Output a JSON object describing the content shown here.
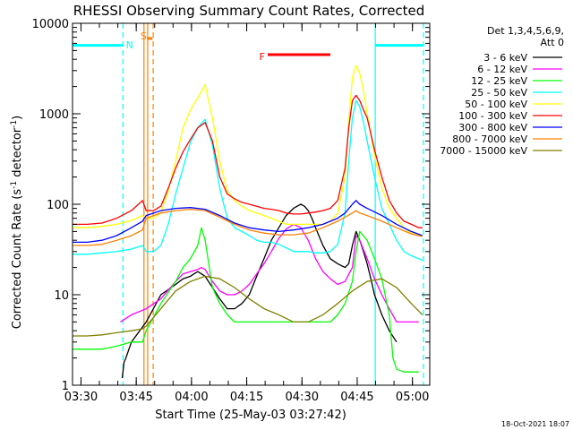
{
  "chart_data": {
    "type": "line",
    "title": "RHESSI Observing Summary Count Rates, Corrected",
    "xlabel": "Start Time (25-May-03 03:27:42)",
    "ylabel": "Corrected Count Rate (s",
    "ylabel_sup": "-1",
    "ylabel_mid": " detector",
    "ylabel_sup2": "-1",
    "ylabel_end": ")",
    "x_unit": "minutes since 03:27:42",
    "xlim": [
      0,
      97
    ],
    "ylim": [
      1,
      10000
    ],
    "yscale": "log",
    "x_ticks": [
      {
        "v": 2.3,
        "label": "03:30"
      },
      {
        "v": 17.3,
        "label": "03:45"
      },
      {
        "v": 32.3,
        "label": "04:00"
      },
      {
        "v": 47.3,
        "label": "04:15"
      },
      {
        "v": 62.3,
        "label": "04:30"
      },
      {
        "v": 77.3,
        "label": "04:45"
      },
      {
        "v": 92.3,
        "label": "05:00"
      }
    ],
    "y_ticks": [
      {
        "v": 1,
        "label": "1"
      },
      {
        "v": 10,
        "label": "10"
      },
      {
        "v": 100,
        "label": "100"
      },
      {
        "v": 1000,
        "label": "1000"
      },
      {
        "v": 10000,
        "label": "10000"
      }
    ],
    "legend_header": [
      "Det 1,3,4,5,6,9,",
      "Att 0"
    ],
    "legend_position": "right",
    "series": [
      {
        "name": "3 - 6 keV",
        "color": "#000000",
        "x": [
          13.5,
          14,
          14.5,
          16,
          20,
          24,
          28,
          30,
          32,
          33,
          34,
          35,
          36,
          38,
          40,
          42,
          44,
          46,
          48,
          50,
          52,
          54,
          56,
          58,
          60,
          61,
          62,
          63,
          64,
          65,
          66,
          68,
          70,
          72,
          74,
          75,
          76,
          77,
          78,
          79,
          80,
          81,
          82,
          84,
          86,
          88
        ],
        "y": [
          1.2,
          1.8,
          2.0,
          3,
          5,
          10,
          13,
          15,
          16,
          17,
          18,
          17,
          16,
          12,
          9,
          7,
          7,
          8,
          10,
          16,
          25,
          40,
          55,
          75,
          90,
          95,
          100,
          95,
          85,
          70,
          55,
          35,
          25,
          22,
          20,
          22,
          35,
          50,
          40,
          30,
          22,
          15,
          10,
          6,
          4,
          3
        ]
      },
      {
        "name": "6 - 12 keV",
        "color": "#ff00ff",
        "x": [
          13,
          16,
          20,
          24,
          28,
          30,
          32,
          34,
          35,
          36,
          38,
          40,
          42,
          44,
          46,
          48,
          50,
          52,
          54,
          56,
          58,
          60,
          62,
          64,
          66,
          68,
          70,
          72,
          74,
          76,
          77,
          78,
          80,
          82,
          84,
          86,
          88,
          90,
          92,
          94
        ],
        "y": [
          5,
          6,
          7,
          9,
          14,
          17,
          18,
          19,
          20,
          19,
          14,
          11,
          10,
          10,
          11,
          13,
          17,
          22,
          30,
          42,
          53,
          60,
          55,
          40,
          25,
          18,
          15,
          13,
          14,
          20,
          45,
          40,
          25,
          15,
          10,
          7,
          5,
          5,
          5,
          5
        ]
      },
      {
        "name": "12 - 25 keV",
        "color": "#00ff00",
        "x": [
          0,
          4,
          8,
          12,
          16,
          19,
          20,
          24,
          28,
          30,
          32,
          34,
          35,
          36,
          38,
          40,
          42,
          44,
          46,
          48,
          50,
          52,
          54,
          56,
          58,
          60,
          62,
          64,
          66,
          68,
          70,
          72,
          74,
          76,
          77,
          78,
          80,
          82,
          84,
          86,
          87,
          88,
          90,
          92,
          94
        ],
        "y": [
          2.5,
          2.5,
          2.5,
          2.7,
          3,
          3,
          4,
          8,
          14,
          20,
          25,
          35,
          55,
          40,
          12,
          8,
          6,
          5,
          5,
          5,
          5,
          5,
          5,
          5,
          5,
          5,
          5,
          5,
          5,
          5,
          5,
          6,
          8,
          14,
          30,
          50,
          40,
          25,
          15,
          6,
          2,
          1.5,
          1.4,
          1.4,
          1.4
        ]
      },
      {
        "name": "25 - 50 keV",
        "color": "#00ffff",
        "x": [
          0,
          4,
          8,
          12,
          16,
          19,
          20,
          22,
          24,
          26,
          28,
          30,
          32,
          34,
          36,
          38,
          40,
          42,
          44,
          46,
          48,
          50,
          52,
          54,
          56,
          58,
          60,
          62,
          64,
          66,
          68,
          70,
          72,
          74,
          75,
          76,
          77,
          78,
          79,
          80,
          82,
          84,
          86,
          88,
          90,
          92,
          94,
          95
        ],
        "y": [
          28,
          28,
          29,
          30,
          32,
          35,
          30,
          30,
          35,
          60,
          130,
          250,
          480,
          700,
          870,
          450,
          150,
          70,
          55,
          50,
          45,
          40,
          38,
          38,
          36,
          33,
          30,
          30,
          30,
          29,
          29,
          30,
          36,
          80,
          300,
          900,
          1400,
          1200,
          800,
          500,
          200,
          90,
          60,
          40,
          30,
          27,
          25,
          24
        ]
      },
      {
        "name": "50 - 100 keV",
        "color": "#ffff00",
        "x": [
          0,
          4,
          8,
          12,
          16,
          19,
          20,
          22,
          24,
          26,
          28,
          30,
          32,
          34,
          36,
          38,
          40,
          42,
          44,
          46,
          48,
          50,
          52,
          54,
          56,
          58,
          60,
          62,
          64,
          66,
          68,
          70,
          72,
          74,
          75,
          76,
          77,
          78,
          79,
          80,
          82,
          84,
          86,
          88,
          90,
          92,
          94,
          95
        ],
        "y": [
          55,
          55,
          57,
          60,
          66,
          75,
          70,
          70,
          80,
          140,
          300,
          700,
          1100,
          1500,
          2100,
          900,
          300,
          140,
          110,
          95,
          85,
          80,
          75,
          70,
          65,
          60,
          60,
          60,
          60,
          60,
          60,
          65,
          80,
          200,
          800,
          2500,
          3400,
          2800,
          1800,
          1000,
          350,
          150,
          90,
          70,
          55,
          48,
          45,
          44
        ]
      },
      {
        "name": "100 - 300 keV",
        "color": "#ff0000",
        "x": [
          0,
          4,
          8,
          12,
          16,
          19,
          20,
          22,
          24,
          26,
          28,
          30,
          32,
          34,
          36,
          38,
          40,
          42,
          44,
          46,
          48,
          50,
          52,
          54,
          56,
          58,
          60,
          62,
          64,
          66,
          68,
          70,
          72,
          74,
          75,
          76,
          77,
          78,
          79,
          80,
          82,
          84,
          86,
          88,
          90,
          92,
          94,
          95
        ],
        "y": [
          60,
          60,
          62,
          70,
          85,
          110,
          85,
          85,
          95,
          150,
          250,
          380,
          520,
          700,
          800,
          500,
          200,
          130,
          115,
          105,
          100,
          95,
          90,
          88,
          85,
          80,
          78,
          78,
          80,
          82,
          85,
          90,
          110,
          250,
          700,
          1400,
          1600,
          1400,
          1100,
          900,
          400,
          200,
          110,
          80,
          65,
          60,
          55,
          55
        ]
      },
      {
        "name": "300 - 800 keV",
        "color": "#0000ff",
        "x": [
          0,
          4,
          8,
          12,
          16,
          19,
          20,
          24,
          28,
          32,
          36,
          40,
          44,
          48,
          52,
          56,
          60,
          64,
          68,
          72,
          74,
          76,
          77,
          78,
          80,
          84,
          88,
          92,
          95
        ],
        "y": [
          38,
          38,
          40,
          45,
          55,
          65,
          75,
          85,
          90,
          92,
          88,
          75,
          62,
          55,
          52,
          50,
          52,
          55,
          60,
          70,
          80,
          100,
          110,
          100,
          90,
          75,
          60,
          50,
          45
        ]
      },
      {
        "name": "800 - 7000 keV",
        "color": "#ff8000",
        "x": [
          0,
          4,
          8,
          12,
          16,
          19,
          20,
          24,
          28,
          32,
          36,
          40,
          44,
          48,
          52,
          56,
          60,
          64,
          68,
          72,
          74,
          76,
          77,
          78,
          80,
          84,
          88,
          92,
          95
        ],
        "y": [
          35,
          35,
          36,
          40,
          45,
          52,
          70,
          80,
          85,
          88,
          85,
          72,
          60,
          52,
          48,
          46,
          46,
          48,
          55,
          65,
          72,
          80,
          85,
          80,
          75,
          65,
          55,
          47,
          44
        ]
      },
      {
        "name": "7000 - 15000 keV",
        "color": "#808000",
        "x": [
          0,
          4,
          8,
          12,
          16,
          19,
          20,
          24,
          28,
          32,
          36,
          40,
          44,
          48,
          52,
          56,
          60,
          64,
          68,
          72,
          76,
          80,
          84,
          88,
          92,
          95
        ],
        "y": [
          3.5,
          3.5,
          3.6,
          3.8,
          4.0,
          4.2,
          4.5,
          7,
          11,
          14,
          16,
          15,
          12,
          9,
          7,
          6,
          5,
          5,
          6,
          8,
          11,
          14,
          15,
          12,
          8,
          6
        ]
      }
    ],
    "annotations": [
      {
        "label": "N",
        "color": "#00ffff",
        "x": 15.5,
        "y": 5800
      },
      {
        "label": "S",
        "color": "#ff8000",
        "x": 19.3,
        "y": 7300
      },
      {
        "label": "F",
        "color": "#ff0000",
        "x": 51.5,
        "y": 4300
      }
    ],
    "night_segments": [
      {
        "x0": 0,
        "x1": 13.7,
        "y": 5700
      },
      {
        "x0": 82.2,
        "x1": 95.3,
        "y": 5700
      }
    ],
    "saa_segments": [
      {
        "x0": 20.2,
        "x1": 21.7,
        "y": 6800
      }
    ],
    "flare_segments": [
      {
        "x0": 53.0,
        "x1": 70.0,
        "y": 4500
      }
    ],
    "vlines": [
      {
        "x": 13.7,
        "color": "#00ffff",
        "dash": true
      },
      {
        "x": 19.4,
        "color": "#ff8000",
        "dash": false
      },
      {
        "x": 20.4,
        "color": "#ff8000",
        "dash": false
      },
      {
        "x": 21.9,
        "color": "#ff8000",
        "dash": true
      },
      {
        "x": 82.2,
        "color": "#00ffff",
        "dash": false
      },
      {
        "x": 95.3,
        "color": "#00ffff",
        "dash": true
      }
    ],
    "timestamp": "18-Oct-2021 18:07"
  }
}
